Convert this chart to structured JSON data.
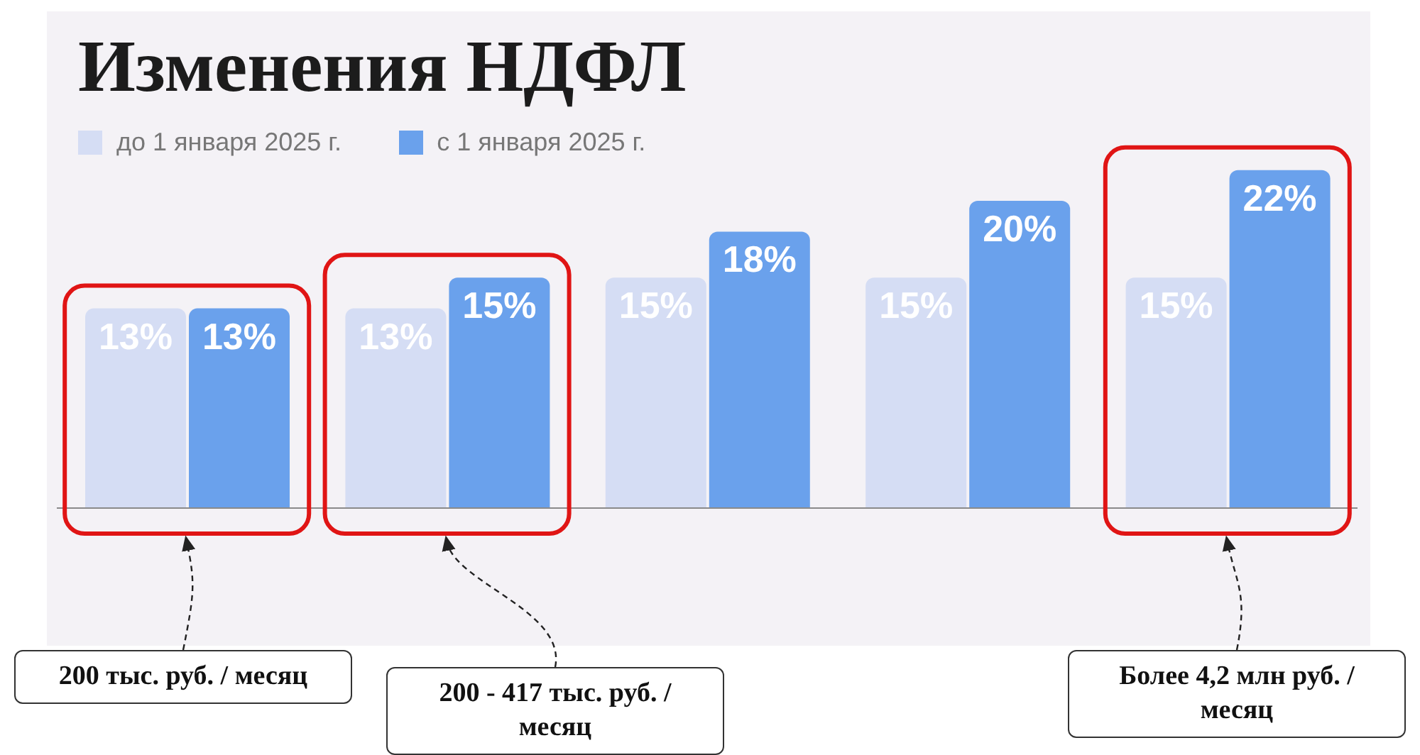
{
  "chart_data": {
    "type": "bar",
    "title": "Изменения НДФЛ",
    "categories": [
      null,
      null,
      null,
      null,
      null
    ],
    "series": [
      {
        "name": "до 1 января 2025 г.",
        "color": "#d5ddf4",
        "values": [
          13,
          13,
          15,
          15,
          15
        ],
        "value_labels": [
          "13%",
          "13%",
          "15%",
          "15%",
          "15%"
        ]
      },
      {
        "name": "с 1 января 2025 г.",
        "color": "#6aa1ec",
        "values": [
          13,
          15,
          18,
          20,
          22
        ],
        "value_labels": [
          "13%",
          "15%",
          "18%",
          "20%",
          "22%"
        ]
      }
    ],
    "legend": "top left",
    "grid": false,
    "annotations": [
      "200 тыс. руб. / месяц",
      "200 - 417 тыс. руб. / месяц",
      "Более 4,2 млн руб. / месяц"
    ]
  }
}
